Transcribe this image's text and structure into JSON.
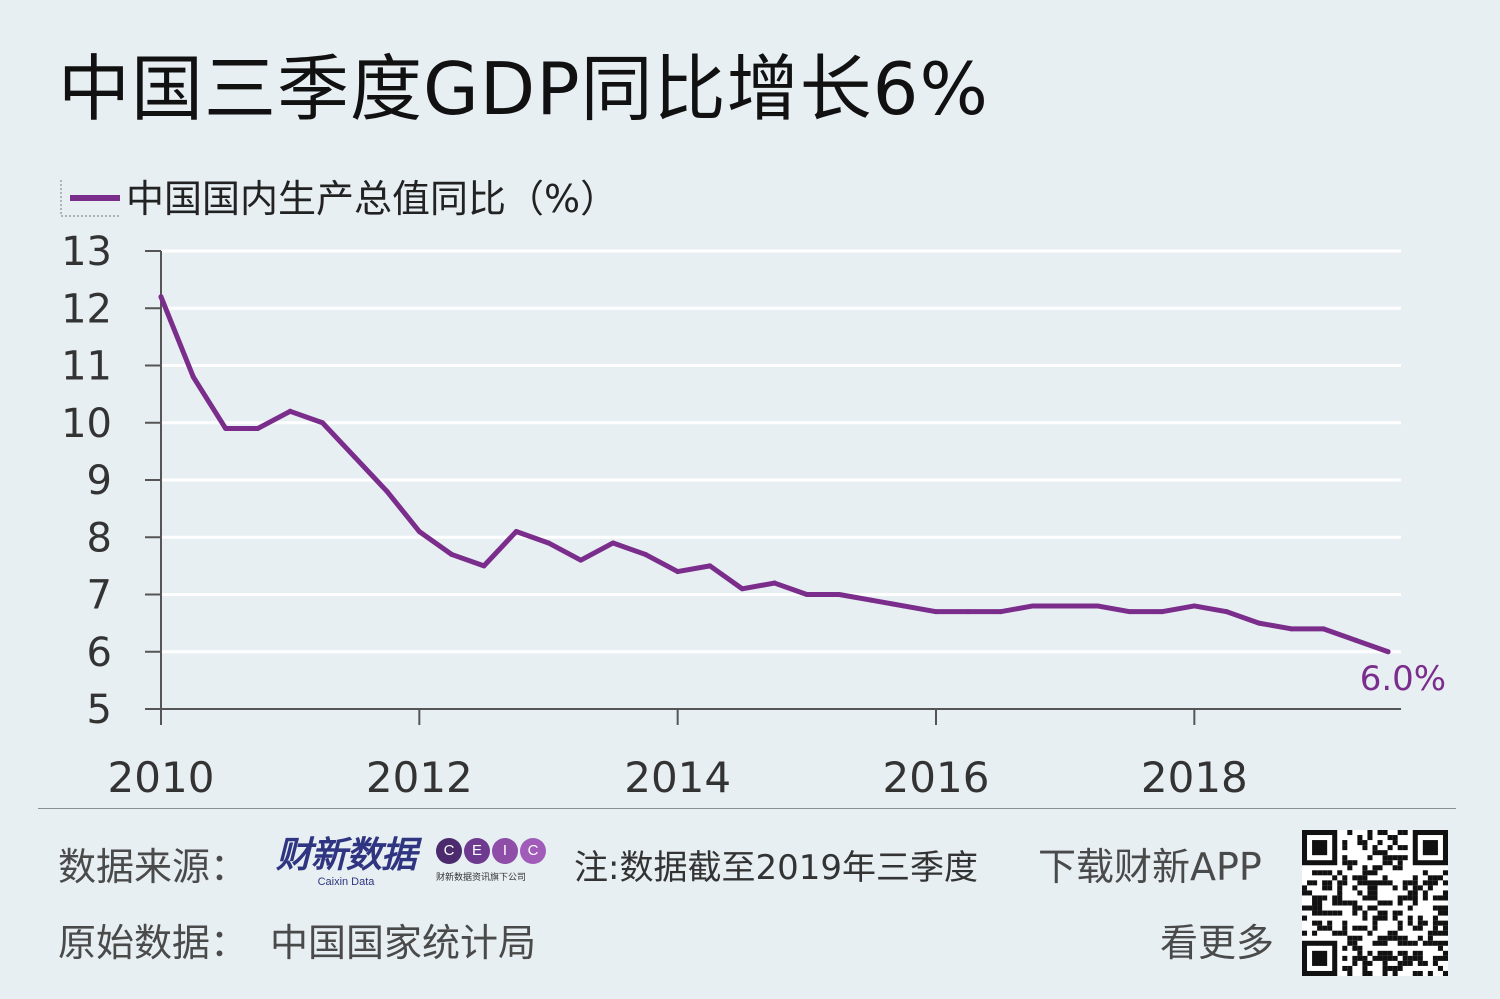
{
  "header": {
    "title": "中国三季度GDP同比增长6%"
  },
  "chart_data": {
    "type": "line",
    "series": [
      {
        "name": "中国国内生产总值同比（%）",
        "color": "#7b2d8b",
        "x": [
          2010.0,
          2010.25,
          2010.5,
          2010.75,
          2011.0,
          2011.25,
          2011.5,
          2011.75,
          2012.0,
          2012.25,
          2012.5,
          2012.75,
          2013.0,
          2013.25,
          2013.5,
          2013.75,
          2014.0,
          2014.25,
          2014.5,
          2014.75,
          2015.0,
          2015.25,
          2015.5,
          2015.75,
          2016.0,
          2016.25,
          2016.5,
          2016.75,
          2017.0,
          2017.25,
          2017.5,
          2017.75,
          2018.0,
          2018.25,
          2018.5,
          2018.75,
          2019.0,
          2019.25,
          2019.5
        ],
        "values": [
          12.2,
          10.8,
          9.9,
          9.9,
          10.2,
          10.0,
          9.4,
          8.8,
          8.1,
          7.7,
          7.5,
          8.1,
          7.9,
          7.6,
          7.9,
          7.7,
          7.4,
          7.5,
          7.1,
          7.2,
          7.0,
          7.0,
          6.9,
          6.8,
          6.7,
          6.7,
          6.7,
          6.8,
          6.8,
          6.8,
          6.7,
          6.7,
          6.8,
          6.7,
          6.5,
          6.4,
          6.4,
          6.2,
          6.0
        ]
      }
    ],
    "xlim": [
      2010.0,
      2019.6
    ],
    "ylim": [
      5,
      13
    ],
    "yticks": [
      5,
      6,
      7,
      8,
      9,
      10,
      11,
      12,
      13
    ],
    "xticks": [
      2010,
      2012,
      2014,
      2016,
      2018
    ],
    "last_label": "6.0%",
    "grid": true,
    "legend_position": "top-left"
  },
  "footer": {
    "source_label": "数据来源：",
    "caixin_logo": "财新数据",
    "caixin_logo_sub": "Caixin Data",
    "ceic_letters": [
      "C",
      "E",
      "I",
      "C"
    ],
    "ceic_colors": [
      "#4b2a6e",
      "#6d3a8f",
      "#8e4da6",
      "#a05cb8"
    ],
    "ceic_sub": "财新数据资讯旗下公司",
    "note": "注:数据截至2019年三季度",
    "download": "下载财新APP",
    "see_more": "看更多",
    "origin_label": "原始数据：",
    "origin_value": "中国国家统计局",
    "qr_icon": "qr-code-icon"
  }
}
